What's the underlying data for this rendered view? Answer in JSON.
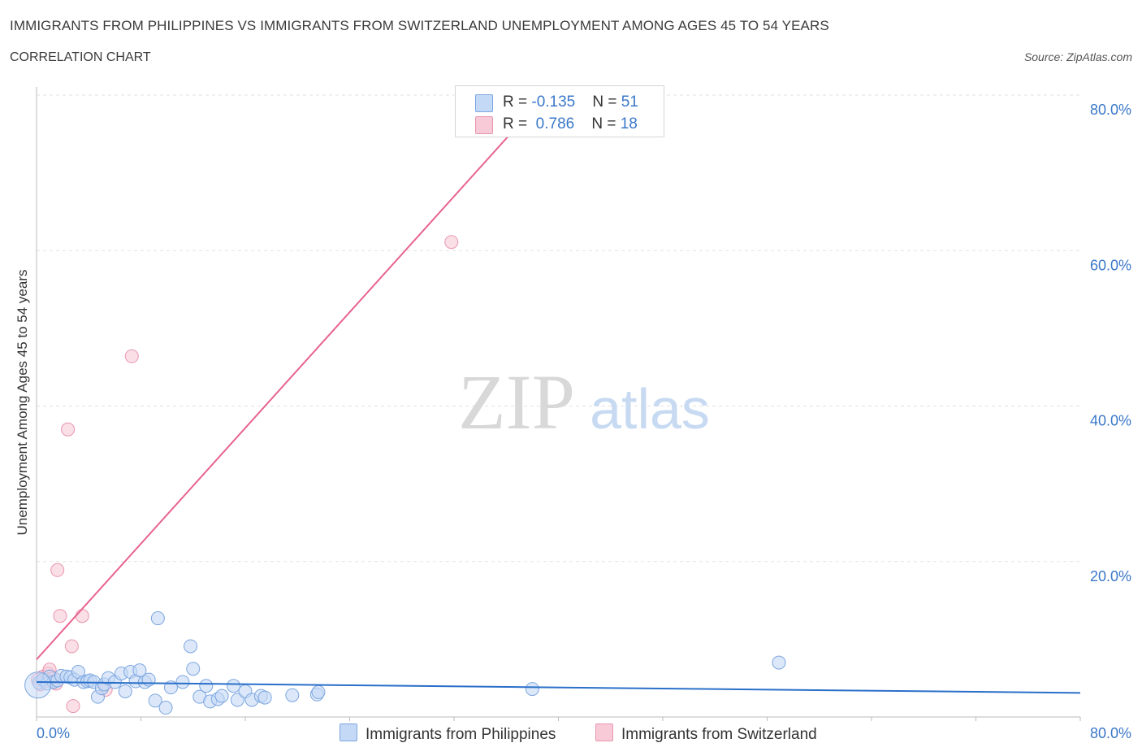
{
  "title": "IMMIGRANTS FROM PHILIPPINES VS IMMIGRANTS FROM SWITZERLAND UNEMPLOYMENT AMONG AGES 45 TO 54 YEARS",
  "subtitle": "CORRELATION CHART",
  "source": "Source: ZipAtlas.com",
  "watermark": {
    "zip": "ZIP",
    "atlas": "atlas"
  },
  "colors": {
    "philippines_fill": "#c4d9f5",
    "philippines_stroke": "#7ca6e0",
    "philippines_line": "#2a6fc9",
    "switzerland_fill": "#f8c9d7",
    "switzerland_stroke": "#e896b0",
    "switzerland_line": "#e8638e",
    "axis_label": "#3a78c9",
    "grid": "#e2e2e2"
  },
  "legend": {
    "rows": [
      {
        "r_label": "R = ",
        "r_value": "-0.135",
        "n_label": "N = ",
        "n_value": "51"
      },
      {
        "r_label": "R = ",
        "r_value": " 0.786",
        "n_label": "N = ",
        "n_value": "18"
      }
    ]
  },
  "chart_data": {
    "type": "scatter",
    "title": "IMMIGRANTS FROM PHILIPPINES VS IMMIGRANTS FROM SWITZERLAND UNEMPLOYMENT AMONG AGES 45 TO 54 YEARS",
    "subtitle": "CORRELATION CHART",
    "xlabel": "",
    "ylabel": "Unemployment Among Ages 45 to 54 years",
    "xlim": [
      0,
      80
    ],
    "ylim": [
      0,
      80
    ],
    "x_tick_labels": [
      "0.0%",
      "80.0%"
    ],
    "y_tick_labels": [
      "20.0%",
      "40.0%",
      "60.0%",
      "80.0%"
    ],
    "y_ticks": [
      20,
      40,
      60,
      80
    ],
    "grid": true,
    "legend_position": "top-center",
    "series": [
      {
        "name": "Immigrants from Philippines",
        "trend": {
          "x": [
            0,
            80
          ],
          "y": [
            4.5,
            3.1
          ]
        },
        "points": [
          [
            0.2,
            4.4
          ],
          [
            0.5,
            4.8
          ],
          [
            0.8,
            4.3
          ],
          [
            1.0,
            5.2
          ],
          [
            1.3,
            4.5
          ],
          [
            1.6,
            4.7
          ],
          [
            1.9,
            5.3
          ],
          [
            2.3,
            5.2
          ],
          [
            2.6,
            5.1
          ],
          [
            2.9,
            4.8
          ],
          [
            3.2,
            5.8
          ],
          [
            3.6,
            4.5
          ],
          [
            3.9,
            4.6
          ],
          [
            4.1,
            4.7
          ],
          [
            4.4,
            4.5
          ],
          [
            4.7,
            2.6
          ],
          [
            5.0,
            3.7
          ],
          [
            5.2,
            4.2
          ],
          [
            5.5,
            5.0
          ],
          [
            6.0,
            4.5
          ],
          [
            6.5,
            5.6
          ],
          [
            6.8,
            3.3
          ],
          [
            7.2,
            5.8
          ],
          [
            7.6,
            4.6
          ],
          [
            7.9,
            6.0
          ],
          [
            8.3,
            4.5
          ],
          [
            8.6,
            4.8
          ],
          [
            9.1,
            2.1
          ],
          [
            9.3,
            12.7
          ],
          [
            9.9,
            1.2
          ],
          [
            10.3,
            3.8
          ],
          [
            11.2,
            4.5
          ],
          [
            11.8,
            9.1
          ],
          [
            12.0,
            6.2
          ],
          [
            12.5,
            2.6
          ],
          [
            13.0,
            4.0
          ],
          [
            13.3,
            2.0
          ],
          [
            13.9,
            2.3
          ],
          [
            14.2,
            2.7
          ],
          [
            15.1,
            4.0
          ],
          [
            15.4,
            2.2
          ],
          [
            16.0,
            3.3
          ],
          [
            16.5,
            2.2
          ],
          [
            17.2,
            2.7
          ],
          [
            17.5,
            2.5
          ],
          [
            19.6,
            2.8
          ],
          [
            21.5,
            2.9
          ],
          [
            21.6,
            3.2
          ],
          [
            38.0,
            3.6
          ],
          [
            56.9,
            7.0
          ],
          [
            0.1,
            4.1
          ]
        ]
      },
      {
        "name": "Immigrants from Switzerland",
        "trend": {
          "x": [
            0,
            39.0
          ],
          "y": [
            7.4,
            80
          ]
        },
        "points": [
          [
            0.1,
            4.8
          ],
          [
            0.3,
            4.2
          ],
          [
            0.5,
            5.2
          ],
          [
            0.7,
            4.6
          ],
          [
            0.9,
            5.6
          ],
          [
            1.0,
            6.1
          ],
          [
            1.1,
            4.9
          ],
          [
            1.3,
            5.0
          ],
          [
            1.5,
            4.3
          ],
          [
            1.6,
            18.9
          ],
          [
            1.8,
            13.0
          ],
          [
            2.4,
            37.0
          ],
          [
            2.7,
            9.1
          ],
          [
            2.8,
            1.4
          ],
          [
            3.5,
            13.0
          ],
          [
            5.3,
            3.5
          ],
          [
            7.3,
            46.4
          ],
          [
            31.8,
            61.1
          ]
        ]
      }
    ]
  },
  "bottom_legend": {
    "philippines": "Immigrants from Philippines",
    "switzerland": "Immigrants from Switzerland"
  }
}
